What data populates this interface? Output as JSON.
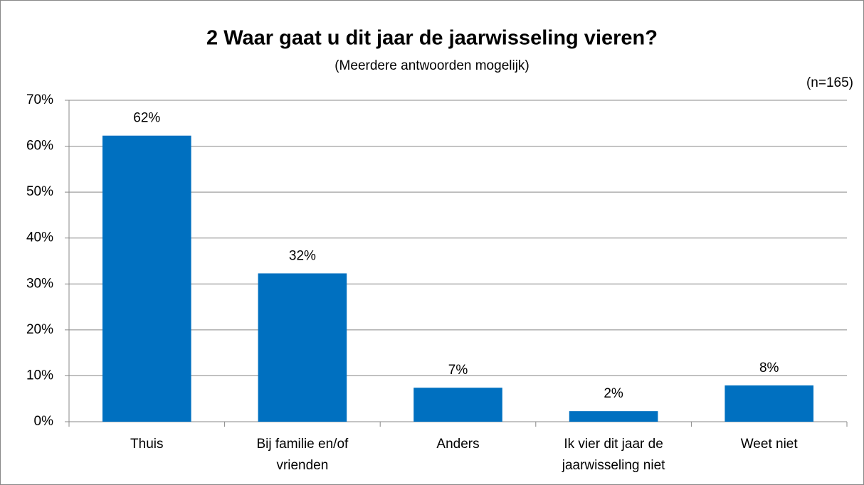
{
  "chart_data": {
    "type": "bar",
    "title": "2 Waar gaat u dit jaar de jaarwisseling vieren?",
    "subtitle": "(Meerdere antwoorden mogelijk)",
    "annotation": "(n=165)",
    "categories": [
      "Thuis",
      "Bij familie en/of vrienden",
      "Anders",
      "Ik vier dit jaar de jaarwisseling niet",
      "Weet niet"
    ],
    "values": [
      62.3,
      32.3,
      7.4,
      2.3,
      7.9
    ],
    "value_labels": [
      "62%",
      "32%",
      "7%",
      "2%",
      "8%"
    ],
    "color": "#0070c0",
    "ylim": [
      0,
      70
    ],
    "yticks": [
      {
        "value": 0,
        "label": "0%"
      },
      {
        "value": 10,
        "label": "10%"
      },
      {
        "value": 20,
        "label": "20%"
      },
      {
        "value": 30,
        "label": "30%"
      },
      {
        "value": 40,
        "label": "40%"
      },
      {
        "value": 50,
        "label": "50%"
      },
      {
        "value": 60,
        "label": "60%"
      },
      {
        "value": 70,
        "label": "70%"
      }
    ],
    "grid": true
  }
}
